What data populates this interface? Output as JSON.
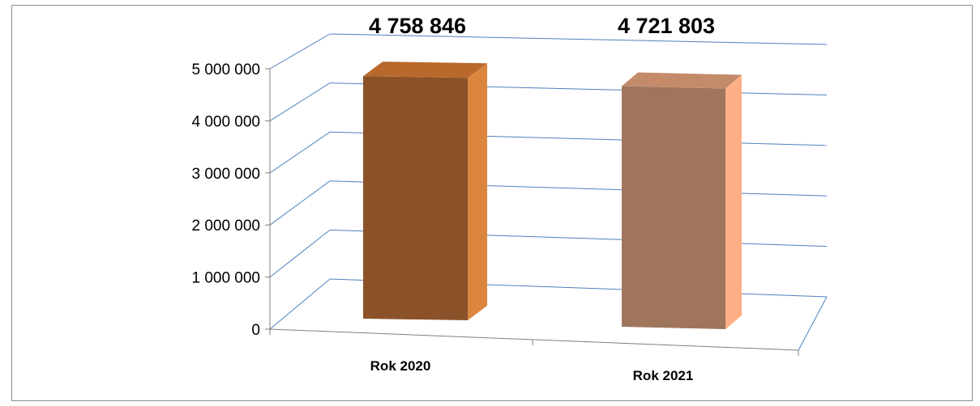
{
  "chart_data": {
    "type": "bar",
    "style": "3d-column",
    "categories": [
      "Rok 2020",
      "Rok 2021"
    ],
    "values": [
      4758846,
      4721803
    ],
    "data_labels": [
      "4 758 846",
      "4 721 803"
    ],
    "ylim": [
      0,
      5000000
    ],
    "yticks": [
      0,
      1000000,
      2000000,
      3000000,
      4000000,
      5000000
    ],
    "ytick_labels": [
      "0",
      "1 000 000",
      "2 000 000",
      "3 000 000",
      "4 000 000",
      "5 000 000"
    ],
    "grid": true,
    "legend": "none",
    "colors": {
      "bars": [
        {
          "front": "#8b5229",
          "side": "#dc853f",
          "top": "#b9692c"
        },
        {
          "front": "#9f755c",
          "side": "#ffaf85",
          "top": "#c48b6b"
        }
      ],
      "grid": "#4f81bd",
      "axis": "#7f7f7f"
    }
  }
}
